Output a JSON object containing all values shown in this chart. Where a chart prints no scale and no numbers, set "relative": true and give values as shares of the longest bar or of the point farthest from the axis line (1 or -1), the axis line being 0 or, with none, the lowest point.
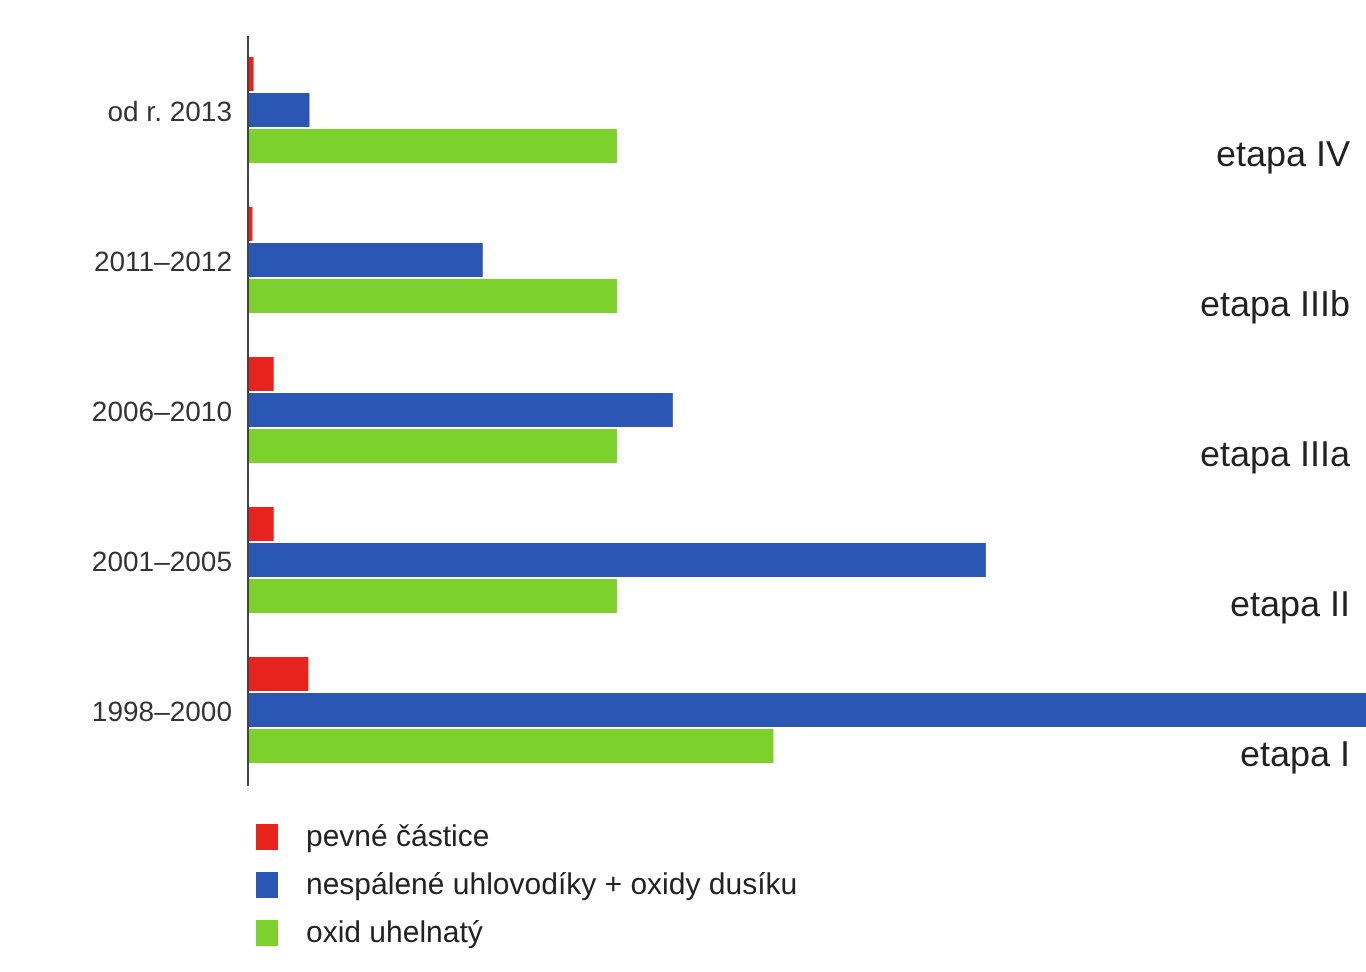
{
  "chart_data": {
    "type": "bar",
    "orientation": "horizontal",
    "relative": true,
    "categories": [
      "od r. 2013",
      "2011–2012",
      "2006–2010",
      "2001–2005",
      "1998–2000"
    ],
    "series": [
      {
        "name": "pevné částice",
        "color": "#e8231e",
        "values": [
          0.005,
          0.004,
          0.023,
          0.023,
          0.054
        ]
      },
      {
        "name": "nespálené uhlovodíky + oxidy dusíku",
        "color": "#2a56b4",
        "values": [
          0.055,
          0.21,
          0.38,
          0.66,
          1
        ]
      },
      {
        "name": "oxid uhelnatý",
        "color": "#7cd12c",
        "values": [
          0.33,
          0.33,
          0.33,
          0.33,
          0.47
        ]
      }
    ],
    "annotations": [
      "etapa IV",
      "etapa IIIb",
      "etapa IIIa",
      "etapa II",
      "etapa I"
    ],
    "legend": "bottom left"
  }
}
